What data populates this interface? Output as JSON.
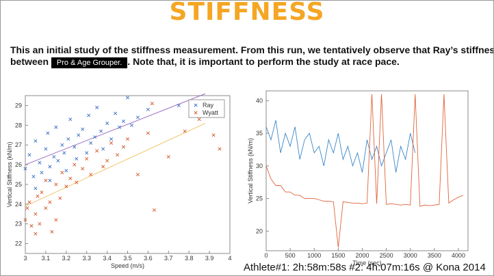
{
  "title": "STIFFNESS",
  "body": {
    "line1": "This an initial study of the stiffness measurement. From this run, we tentatively observe that Ray’s stiffness is",
    "line2_a": "between",
    "highlight": "Pro & Age Grouper.",
    "line2_b": ". Note that, it is important to perform the study at race pace."
  },
  "caption": "Athlete#1: 2h:58m:58s   #2: 4h:07m:16s @ Kona 2014",
  "chart_data": [
    {
      "type": "scatter",
      "xlabel": "Speed (m/s)",
      "ylabel": "Vertical Stiffness (kN/m)",
      "xlim": [
        3,
        4
      ],
      "ylim": [
        21.5,
        29.5
      ],
      "xticks": [
        3,
        3.1,
        3.2,
        3.3,
        3.4,
        3.5,
        3.6,
        3.7,
        3.8,
        3.9,
        4
      ],
      "yticks": [
        22,
        23,
        24,
        25,
        26,
        27,
        28,
        29
      ],
      "legend": "upper right",
      "series": [
        {
          "name": "Ray",
          "color": "#3a6fc4",
          "x": [
            3.0,
            3.02,
            3.04,
            3.05,
            3.07,
            3.08,
            3.1,
            3.11,
            3.12,
            3.14,
            3.15,
            3.16,
            3.18,
            3.19,
            3.2,
            3.21,
            3.22,
            3.24,
            3.25,
            3.26,
            3.28,
            3.3,
            3.31,
            3.32,
            3.34,
            3.35,
            3.37,
            3.38,
            3.4,
            3.42,
            3.44,
            3.46,
            3.48,
            3.5,
            3.52,
            3.55,
            3.6,
            3.75,
            3.05,
            3.12
          ],
          "values": [
            25.8,
            26.5,
            25.4,
            27.2,
            26.1,
            25.6,
            26.8,
            27.6,
            25.9,
            26.4,
            27.9,
            26.2,
            27.0,
            26.6,
            25.7,
            27.3,
            28.3,
            26.9,
            26.3,
            27.5,
            27.8,
            26.6,
            28.5,
            27.1,
            27.4,
            28.9,
            27.7,
            26.8,
            28.1,
            27.3,
            28.6,
            27.9,
            28.2,
            29.4,
            28.0,
            28.4,
            28.8,
            29.0,
            24.8,
            25.2
          ]
        },
        {
          "name": "Wyatt",
          "color": "#d4572a",
          "x": [
            3.0,
            3.01,
            3.02,
            3.03,
            3.05,
            3.06,
            3.07,
            3.08,
            3.1,
            3.1,
            3.12,
            3.13,
            3.15,
            3.17,
            3.18,
            3.2,
            3.22,
            3.24,
            3.25,
            3.28,
            3.3,
            3.32,
            3.35,
            3.38,
            3.4,
            3.42,
            3.45,
            3.48,
            3.5,
            3.55,
            3.6,
            3.62,
            3.63,
            3.7,
            3.78,
            3.85,
            3.92,
            3.95,
            3.15,
            3.05
          ],
          "values": [
            23.2,
            23.8,
            24.1,
            22.9,
            23.5,
            24.4,
            23.0,
            24.6,
            23.8,
            25.2,
            24.1,
            22.6,
            25.0,
            24.3,
            25.6,
            24.9,
            25.3,
            26.0,
            25.1,
            25.8,
            26.3,
            25.5,
            26.7,
            25.9,
            26.2,
            27.1,
            26.5,
            26.9,
            27.3,
            25.5,
            27.6,
            29.1,
            23.7,
            26.4,
            27.7,
            28.3,
            27.5,
            26.8,
            23.2,
            22.5
          ]
        }
      ],
      "fit_lines": [
        {
          "color": "#9a6fc0",
          "x": [
            3,
            3.88
          ],
          "values": [
            26,
            29.6
          ]
        },
        {
          "color": "#f0c46a",
          "x": [
            3,
            3.88
          ],
          "values": [
            23.9,
            28.1
          ]
        }
      ]
    },
    {
      "type": "line",
      "xlabel": "Time (sec)",
      "ylabel": "Vertical Stiffness (kN/m)",
      "xlim": [
        0,
        4200
      ],
      "ylim": [
        17,
        41.5
      ],
      "xticks": [
        0,
        500,
        1000,
        1500,
        2000,
        2500,
        3000,
        3500,
        4000
      ],
      "yticks": [
        20,
        25,
        30,
        35,
        40
      ],
      "series": [
        {
          "color": "#3a86c8",
          "x": [
            0,
            100,
            200,
            300,
            400,
            500,
            600,
            700,
            800,
            900,
            1000,
            1100,
            1200,
            1300,
            1400,
            1500,
            1600,
            1700,
            1800,
            1900,
            2000,
            2100,
            2200,
            2300,
            2400,
            2500,
            2600,
            2700,
            2800,
            2900,
            3000,
            3100
          ],
          "values": [
            36,
            34,
            37,
            32,
            35,
            33,
            36,
            31,
            34,
            35,
            32,
            33,
            30,
            34,
            32,
            35,
            31,
            33,
            30,
            32,
            29,
            34,
            31,
            33,
            30,
            32,
            34,
            29,
            33,
            31,
            35,
            32
          ]
        },
        {
          "color": "#e0623a",
          "x": [
            0,
            100,
            200,
            300,
            400,
            500,
            600,
            700,
            800,
            900,
            1000,
            1100,
            1200,
            1300,
            1400,
            1500,
            1600,
            1700,
            1800,
            1900,
            2000,
            2100,
            2200,
            2300,
            2400,
            2500,
            2600,
            2700,
            2800,
            2900,
            3000,
            3100,
            3200,
            3300,
            3400,
            3500,
            3600,
            3700,
            3800,
            3900,
            4000,
            4100
          ],
          "values": [
            30,
            28,
            27,
            27,
            26,
            26,
            25.5,
            25.5,
            25,
            25,
            25,
            24.8,
            24.6,
            24.6,
            24.5,
            17.5,
            24.5,
            24.4,
            24.3,
            24.3,
            24.2,
            24.3,
            41,
            24.2,
            41,
            24.1,
            24.2,
            24.1,
            24.0,
            24.1,
            24.0,
            41,
            23.8,
            24.0,
            23.9,
            24.0,
            24.1,
            41,
            24.3,
            24.8,
            25.2,
            25.5
          ]
        }
      ]
    }
  ]
}
